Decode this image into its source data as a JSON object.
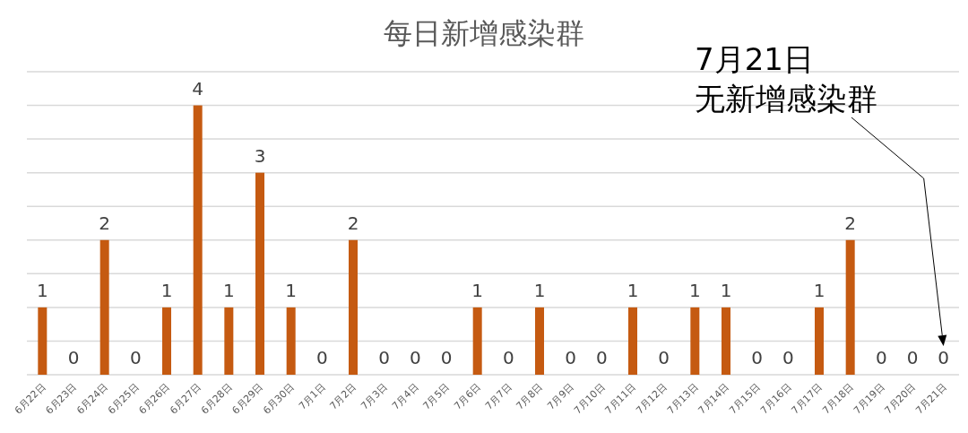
{
  "chart_data": {
    "type": "bar",
    "title": "每日新增感染群",
    "categories": [
      "6月22日",
      "6月23日",
      "6月24日",
      "6月25日",
      "6月26日",
      "6月27日",
      "6月28日",
      "6月29日",
      "6月30日",
      "7月1日",
      "7月2日",
      "7月3日",
      "7月4日",
      "7月5日",
      "7月6日",
      "7月7日",
      "7月8日",
      "7月9日",
      "7月10日",
      "7月11日",
      "7月12日",
      "7月13日",
      "7月14日",
      "7月15日",
      "7月16日",
      "7月17日",
      "7月18日",
      "7月19日",
      "7月20日",
      "7月21日"
    ],
    "values": [
      1,
      0,
      2,
      0,
      1,
      4,
      1,
      3,
      1,
      0,
      2,
      0,
      0,
      0,
      1,
      0,
      1,
      0,
      0,
      1,
      0,
      1,
      1,
      0,
      0,
      1,
      2,
      0,
      0,
      0
    ],
    "color": "#c55a11",
    "ylim": [
      0,
      4.5
    ],
    "yticks": [
      {
        "value": 0,
        "label": null
      },
      {
        "value": 0.5,
        "label": null
      },
      {
        "value": 1,
        "label": null
      },
      {
        "value": 1.5,
        "label": null
      },
      {
        "value": 2,
        "label": null
      },
      {
        "value": 2.5,
        "label": null
      },
      {
        "value": 3,
        "label": null
      },
      {
        "value": 3.5,
        "label": null
      },
      {
        "value": 4,
        "label": null
      },
      {
        "value": 4.5,
        "label": null
      }
    ],
    "grid": "y",
    "tick_labels": "x",
    "data_labels": true,
    "annotations": [
      "7月21日",
      "无新增感染群"
    ]
  }
}
